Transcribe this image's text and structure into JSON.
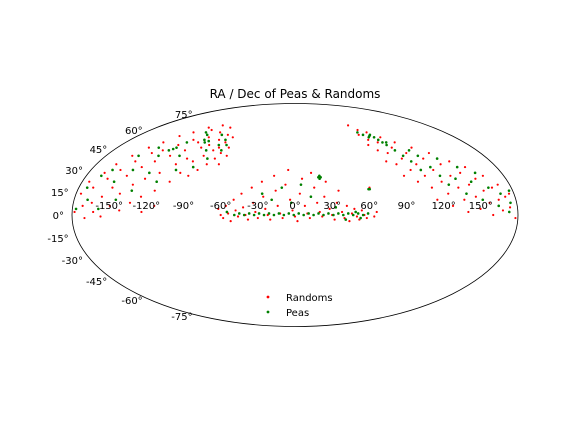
{
  "chart_data": {
    "type": "scatter",
    "projection": "mollweide",
    "title": "RA / Dec of Peas & Randoms",
    "xlabel": "",
    "ylabel": "",
    "xlim": [
      -180,
      180
    ],
    "ylim": [
      -90,
      90
    ],
    "grid": false,
    "x_ticks": [
      -150,
      -120,
      -90,
      -60,
      -30,
      0,
      30,
      60,
      90,
      120,
      150
    ],
    "x_tick_labels": [
      "-150°",
      "-120°",
      "-90°",
      "-60°",
      "-30°",
      "0°",
      "30°",
      "60°",
      "90°",
      "120°",
      "150°"
    ],
    "y_ticks": [
      75,
      60,
      45,
      30,
      15,
      0,
      -15,
      -30,
      -45,
      -60,
      -75
    ],
    "y_tick_labels": [
      "75°",
      "60°",
      "45°",
      "30°",
      "15°",
      "0°",
      "-15°",
      "-30°",
      "-45°",
      "-60°",
      "-75°"
    ],
    "legend": {
      "placement": "lower-center",
      "entries": [
        "Randoms",
        "Peas"
      ]
    },
    "series": [
      {
        "name": "Randoms",
        "color": "#ff0000",
        "points": [
          [
            -178,
            2
          ],
          [
            -176,
            14
          ],
          [
            -174,
            22
          ],
          [
            -172,
            6
          ],
          [
            -170,
            -2
          ],
          [
            -168,
            18
          ],
          [
            -166,
            28
          ],
          [
            -165,
            8
          ],
          [
            -163,
            2
          ],
          [
            -162,
            34
          ],
          [
            -160,
            24
          ],
          [
            -158,
            12
          ],
          [
            -157,
            -1
          ],
          [
            -155,
            40
          ],
          [
            -154,
            30
          ],
          [
            -152,
            18
          ],
          [
            -150,
            6
          ],
          [
            -148,
            46
          ],
          [
            -147,
            36
          ],
          [
            -145,
            26
          ],
          [
            -144,
            14
          ],
          [
            -142,
            3
          ],
          [
            -140,
            50
          ],
          [
            -139,
            42
          ],
          [
            -137,
            32
          ],
          [
            -136,
            20
          ],
          [
            -134,
            8
          ],
          [
            -132,
            55
          ],
          [
            -131,
            44
          ],
          [
            -129,
            36
          ],
          [
            -128,
            24
          ],
          [
            -126,
            12
          ],
          [
            -124,
            2
          ],
          [
            -122,
            58
          ],
          [
            -121,
            48
          ],
          [
            -119,
            40
          ],
          [
            -118,
            28
          ],
          [
            -116,
            16
          ],
          [
            -114,
            6
          ],
          [
            -112,
            62
          ],
          [
            -111,
            52
          ],
          [
            -109,
            44
          ],
          [
            -108,
            34
          ],
          [
            -106,
            22
          ],
          [
            -104,
            60
          ],
          [
            -103,
            50
          ],
          [
            -101,
            38
          ],
          [
            -100,
            28
          ],
          [
            -98,
            64
          ],
          [
            -97,
            54
          ],
          [
            -95,
            46
          ],
          [
            -94,
            36
          ],
          [
            -92,
            26
          ],
          [
            -90,
            58
          ],
          [
            -89,
            48
          ],
          [
            -87,
            40
          ],
          [
            -86,
            30
          ],
          [
            -84,
            62
          ],
          [
            -83,
            52
          ],
          [
            -81,
            44
          ],
          [
            -80,
            34
          ],
          [
            -78,
            56
          ],
          [
            -77,
            46
          ],
          [
            -75,
            38
          ],
          [
            -74,
            50
          ],
          [
            -72,
            42
          ],
          [
            -70,
            54
          ],
          [
            -69,
            34
          ],
          [
            -67,
            46
          ],
          [
            -65,
            40
          ],
          [
            -62,
            4
          ],
          [
            -60,
            0
          ],
          [
            -58,
            -2
          ],
          [
            -56,
            6
          ],
          [
            -54,
            1
          ],
          [
            -52,
            -4
          ],
          [
            -50,
            10
          ],
          [
            -48,
            3
          ],
          [
            -46,
            -1
          ],
          [
            -44,
            14
          ],
          [
            -42,
            5
          ],
          [
            -40,
            0
          ],
          [
            -38,
            -3
          ],
          [
            -36,
            18
          ],
          [
            -34,
            8
          ],
          [
            -32,
            2
          ],
          [
            -30,
            -2
          ],
          [
            -28,
            22
          ],
          [
            -26,
            12
          ],
          [
            -24,
            4
          ],
          [
            -22,
            0
          ],
          [
            -20,
            -3
          ],
          [
            -18,
            26
          ],
          [
            -16,
            16
          ],
          [
            -14,
            6
          ],
          [
            -12,
            1
          ],
          [
            -10,
            -2
          ],
          [
            -8,
            20
          ],
          [
            -6,
            30
          ],
          [
            -4,
            10
          ],
          [
            -2,
            3
          ],
          [
            0,
            -1
          ],
          [
            2,
            -4
          ],
          [
            4,
            14
          ],
          [
            6,
            24
          ],
          [
            8,
            6
          ],
          [
            10,
            1
          ],
          [
            12,
            -2
          ],
          [
            14,
            28
          ],
          [
            16,
            18
          ],
          [
            18,
            8
          ],
          [
            20,
            2
          ],
          [
            22,
            -1
          ],
          [
            24,
            12
          ],
          [
            26,
            22
          ],
          [
            28,
            4
          ],
          [
            30,
            0
          ],
          [
            32,
            -3
          ],
          [
            34,
            8
          ],
          [
            36,
            16
          ],
          [
            38,
            2
          ],
          [
            40,
            -2
          ],
          [
            42,
            6
          ],
          [
            44,
            -4
          ],
          [
            46,
            1
          ],
          [
            48,
            4
          ],
          [
            50,
            -1
          ],
          [
            52,
            -3
          ],
          [
            54,
            3
          ],
          [
            56,
            0
          ],
          [
            58,
            -2
          ],
          [
            62,
            18
          ],
          [
            64,
            -1
          ],
          [
            66,
            2
          ],
          [
            72,
            64
          ],
          [
            74,
            56
          ],
          [
            76,
            48
          ],
          [
            78,
            60
          ],
          [
            80,
            52
          ],
          [
            82,
            44
          ],
          [
            84,
            36
          ],
          [
            86,
            58
          ],
          [
            88,
            50
          ],
          [
            90,
            42
          ],
          [
            92,
            34
          ],
          [
            94,
            26
          ],
          [
            96,
            54
          ],
          [
            98,
            46
          ],
          [
            100,
            38
          ],
          [
            102,
            30
          ],
          [
            104,
            22
          ],
          [
            106,
            50
          ],
          [
            108,
            42
          ],
          [
            110,
            34
          ],
          [
            112,
            26
          ],
          [
            114,
            18
          ],
          [
            116,
            10
          ],
          [
            118,
            46
          ],
          [
            120,
            38
          ],
          [
            122,
            30
          ],
          [
            124,
            22
          ],
          [
            126,
            14
          ],
          [
            128,
            6
          ],
          [
            130,
            42
          ],
          [
            132,
            34
          ],
          [
            134,
            26
          ],
          [
            136,
            18
          ],
          [
            138,
            10
          ],
          [
            140,
            2
          ],
          [
            142,
            36
          ],
          [
            144,
            28
          ],
          [
            146,
            20
          ],
          [
            148,
            12
          ],
          [
            150,
            4
          ],
          [
            152,
            32
          ],
          [
            154,
            24
          ],
          [
            156,
            16
          ],
          [
            158,
            8
          ],
          [
            160,
            0
          ],
          [
            162,
            26
          ],
          [
            164,
            18
          ],
          [
            166,
            10
          ],
          [
            168,
            3
          ],
          [
            170,
            20
          ],
          [
            172,
            12
          ],
          [
            174,
            5
          ],
          [
            176,
            14
          ],
          [
            178,
            -2
          ]
        ]
      },
      {
        "name": "Peas",
        "color": "#008000",
        "points": [
          [
            -177,
            4
          ],
          [
            -173,
            18
          ],
          [
            -169,
            10
          ],
          [
            -167,
            26
          ],
          [
            -161,
            30
          ],
          [
            -159,
            4
          ],
          [
            -153,
            22
          ],
          [
            -149,
            40
          ],
          [
            -146,
            10
          ],
          [
            -143,
            30
          ],
          [
            -138,
            46
          ],
          [
            -135,
            16
          ],
          [
            -130,
            40
          ],
          [
            -127,
            28
          ],
          [
            -125,
            44
          ],
          [
            -122,
            45
          ],
          [
            -120,
            46
          ],
          [
            -117,
            22
          ],
          [
            -115,
            50
          ],
          [
            -110,
            40
          ],
          [
            -107,
            58
          ],
          [
            -105,
            30
          ],
          [
            -102,
            56
          ],
          [
            -99,
            52
          ],
          [
            -96,
            50
          ],
          [
            -93,
            51
          ],
          [
            -91,
            32
          ],
          [
            -88,
            44
          ],
          [
            -85,
            56
          ],
          [
            -82,
            38
          ],
          [
            -79,
            48
          ],
          [
            -76,
            52
          ],
          [
            -73,
            44
          ],
          [
            -71,
            48
          ],
          [
            -55,
            2
          ],
          [
            -49,
            0
          ],
          [
            -45,
            1
          ],
          [
            -41,
            0
          ],
          [
            -37,
            1
          ],
          [
            -33,
            0
          ],
          [
            -29,
            1
          ],
          [
            -25,
            0
          ],
          [
            -21,
            1
          ],
          [
            -17,
            0
          ],
          [
            -13,
            1
          ],
          [
            -9,
            0
          ],
          [
            -5,
            1
          ],
          [
            -1,
            0
          ],
          [
            3,
            1
          ],
          [
            7,
            0
          ],
          [
            11,
            1
          ],
          [
            15,
            0
          ],
          [
            19,
            1
          ],
          [
            23,
            0
          ],
          [
            27,
            1
          ],
          [
            31,
            0
          ],
          [
            35,
            1
          ],
          [
            39,
            0
          ],
          [
            43,
            1
          ],
          [
            47,
            0
          ],
          [
            51,
            1
          ],
          [
            55,
            0
          ],
          [
            59,
            1
          ],
          [
            -27,
            14
          ],
          [
            -19,
            10
          ],
          [
            -11,
            18
          ],
          [
            -3,
            8
          ],
          [
            5,
            20
          ],
          [
            13,
            12
          ],
          [
            21,
            26
          ],
          [
            21,
            24
          ],
          [
            22,
            25
          ],
          [
            20,
            25
          ],
          [
            33,
            5
          ],
          [
            41,
            -3
          ],
          [
            49,
            2
          ],
          [
            53,
            -2
          ],
          [
            61,
            17
          ],
          [
            62,
            17
          ],
          [
            75,
            58
          ],
          [
            79,
            56
          ],
          [
            83,
            54
          ],
          [
            85,
            55
          ],
          [
            87,
            56
          ],
          [
            89,
            54
          ],
          [
            91,
            52
          ],
          [
            93,
            50
          ],
          [
            95,
            48
          ],
          [
            97,
            50
          ],
          [
            99,
            44
          ],
          [
            103,
            40
          ],
          [
            107,
            36
          ],
          [
            111,
            30
          ],
          [
            113,
            44
          ],
          [
            117,
            40
          ],
          [
            121,
            32
          ],
          [
            125,
            26
          ],
          [
            129,
            20
          ],
          [
            133,
            38
          ],
          [
            137,
            24
          ],
          [
            141,
            14
          ],
          [
            145,
            32
          ],
          [
            149,
            22
          ],
          [
            153,
            10
          ],
          [
            157,
            28
          ],
          [
            161,
            18
          ],
          [
            165,
            6
          ],
          [
            169,
            14
          ],
          [
            173,
            2
          ],
          [
            175,
            8
          ],
          [
            177,
            16
          ]
        ]
      }
    ]
  }
}
